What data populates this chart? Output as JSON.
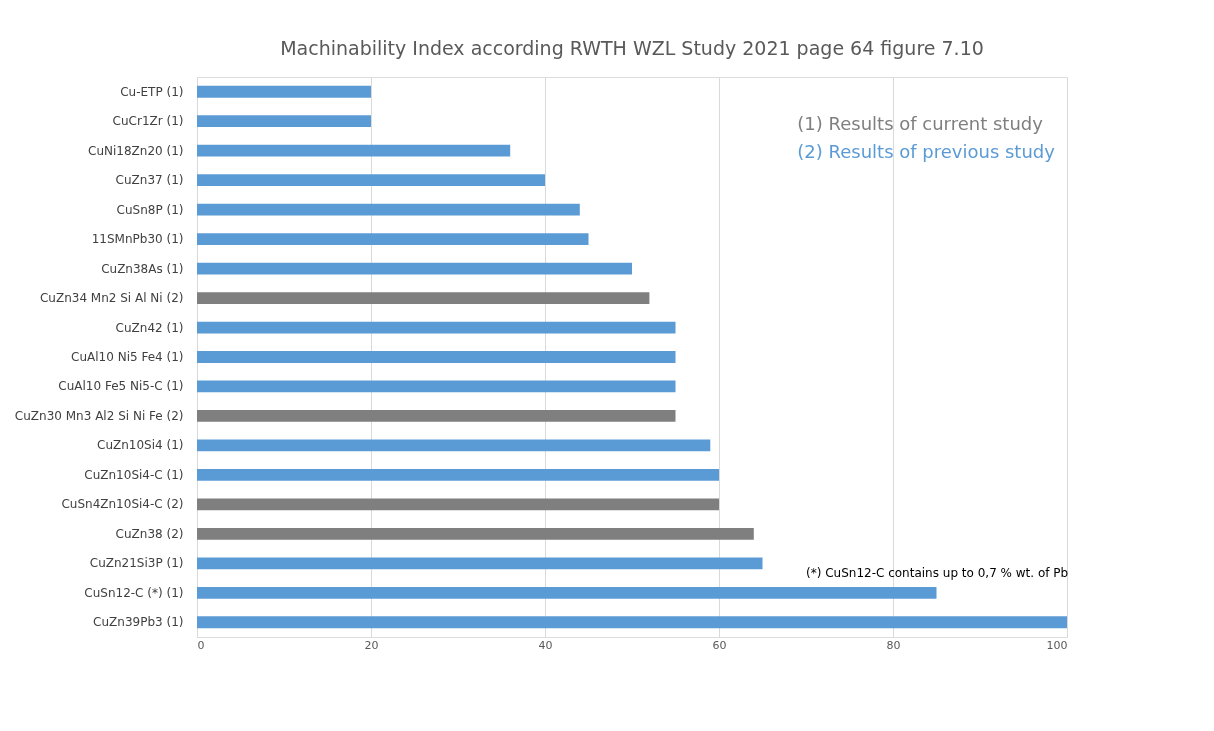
{
  "chart_data": {
    "type": "bar",
    "orientation": "horizontal",
    "title": "Machinability Index according  RWTH WZL Study 2021 page 64 figure 7.10",
    "categories": [
      "Cu-ETP  (1)",
      "CuCr1Zr  (1)",
      "CuNi18Zn20  (1)",
      "CuZn37  (1)",
      "CuSn8P  (1)",
      "11SMnPb30  (1)",
      "CuZn38As  (1)",
      "CuZn34 Mn2 Si Al Ni  (2)",
      "CuZn42  (1)",
      "CuAl10 Ni5 Fe4  (1)",
      "CuAl10 Fe5 Ni5-C  (1)",
      "CuZn30 Mn3 Al2 Si Ni Fe  (2)",
      "CuZn10Si4  (1)",
      "CuZn10Si4-C  (1)",
      "CuSn4Zn10Si4-C  (2)",
      "CuZn38  (2)",
      "CuZn21Si3P  (1)",
      "CuSn12-C (*)  (1)",
      "CuZn39Pb3  (1)"
    ],
    "values": [
      20,
      20,
      36,
      40,
      44,
      45,
      50,
      52,
      55,
      55,
      55,
      55,
      59,
      60,
      60,
      64,
      65,
      85,
      100
    ],
    "colors": [
      "#5b9bd5",
      "#5b9bd5",
      "#5b9bd5",
      "#5b9bd5",
      "#5b9bd5",
      "#5b9bd5",
      "#5b9bd5",
      "#7f7f7f",
      "#5b9bd5",
      "#5b9bd5",
      "#5b9bd5",
      "#7f7f7f",
      "#5b9bd5",
      "#5b9bd5",
      "#7f7f7f",
      "#7f7f7f",
      "#5b9bd5",
      "#5b9bd5",
      "#5b9bd5"
    ],
    "xlim": [
      0,
      100
    ],
    "xticks": [
      0,
      20,
      40,
      60,
      80,
      100
    ],
    "grid": "x",
    "annotations": [
      "(1)  Results of current study",
      "(2)  Results of previous study",
      "(*) CuSn12-C contains up to 0,7 % wt. of Pb"
    ]
  }
}
